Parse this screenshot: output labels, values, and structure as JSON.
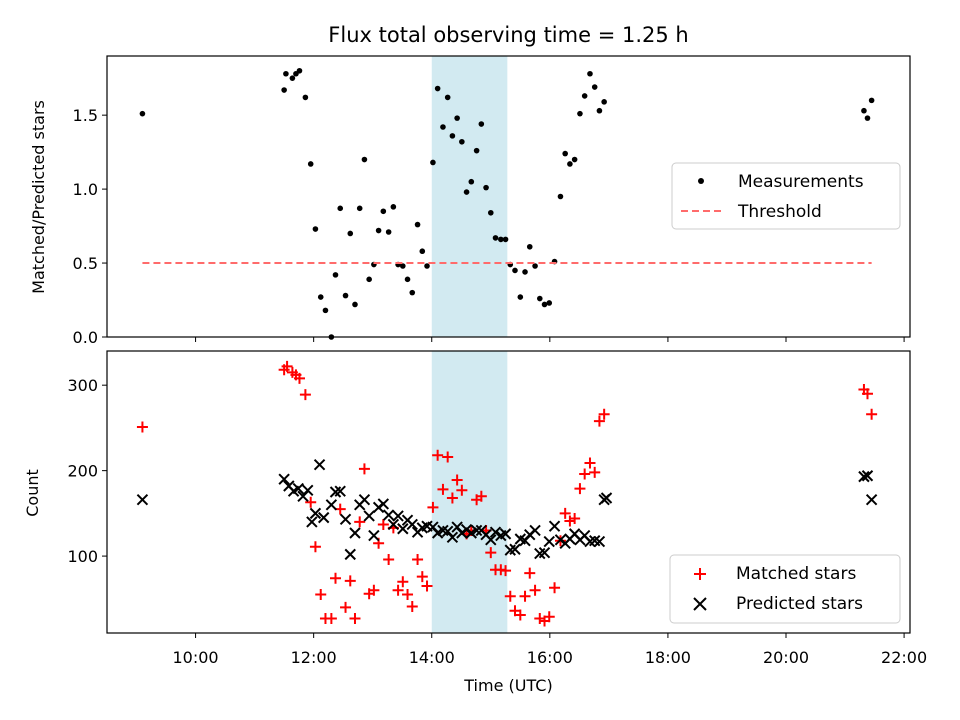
{
  "chart_data": {
    "title": "Flux total observing time = 1.25 h",
    "xlabel": "Time (UTC)",
    "x_unit": "hours UTC",
    "xlim": [
      8.5,
      22.1
    ],
    "x_ticks": [
      {
        "value": 10,
        "label": "10:00"
      },
      {
        "value": 12,
        "label": "12:00"
      },
      {
        "value": 14,
        "label": "14:00"
      },
      {
        "value": 16,
        "label": "16:00"
      },
      {
        "value": 18,
        "label": "18:00"
      },
      {
        "value": 20,
        "label": "20:00"
      },
      {
        "value": 22,
        "label": "22:00"
      }
    ],
    "highlight_span": {
      "x0": 14.0,
      "x1": 15.28,
      "color": "#add8e6"
    },
    "panels": [
      {
        "type": "scatter",
        "ylabel": "Matched/Predicted stars",
        "ylim": [
          0,
          1.9
        ],
        "y_ticks": [
          {
            "value": 0.0,
            "label": "0.0"
          },
          {
            "value": 0.5,
            "label": "0.5"
          },
          {
            "value": 1.0,
            "label": "1.0"
          },
          {
            "value": 1.5,
            "label": "1.5"
          }
        ],
        "legend": {
          "position": "center right"
        },
        "series": [
          {
            "name": "Measurements",
            "marker": "dot",
            "color": "#000000",
            "points": [
              [
                9.1,
                1.51
              ],
              [
                11.5,
                1.67
              ],
              [
                11.53,
                1.78
              ],
              [
                11.64,
                1.75
              ],
              [
                11.7,
                1.78
              ],
              [
                11.76,
                1.8
              ],
              [
                11.86,
                1.62
              ],
              [
                11.95,
                1.17
              ],
              [
                12.03,
                0.73
              ],
              [
                12.12,
                0.27
              ],
              [
                12.2,
                0.18
              ],
              [
                12.3,
                0.0
              ],
              [
                12.37,
                0.42
              ],
              [
                12.45,
                0.87
              ],
              [
                12.54,
                0.28
              ],
              [
                12.62,
                0.7
              ],
              [
                12.7,
                0.22
              ],
              [
                12.78,
                0.87
              ],
              [
                12.86,
                1.2
              ],
              [
                12.94,
                0.39
              ],
              [
                13.02,
                0.49
              ],
              [
                13.1,
                0.72
              ],
              [
                13.18,
                0.85
              ],
              [
                13.27,
                0.71
              ],
              [
                13.35,
                0.88
              ],
              [
                13.43,
                0.49
              ],
              [
                13.51,
                0.48
              ],
              [
                13.59,
                0.39
              ],
              [
                13.67,
                0.3
              ],
              [
                13.76,
                0.76
              ],
              [
                13.84,
                0.58
              ],
              [
                13.92,
                0.48
              ],
              [
                14.02,
                1.18
              ],
              [
                14.1,
                1.68
              ],
              [
                14.19,
                1.42
              ],
              [
                14.27,
                1.62
              ],
              [
                14.35,
                1.36
              ],
              [
                14.43,
                1.48
              ],
              [
                14.51,
                1.32
              ],
              [
                14.59,
                0.98
              ],
              [
                14.67,
                1.05
              ],
              [
                14.76,
                1.26
              ],
              [
                14.84,
                1.44
              ],
              [
                14.92,
                1.01
              ],
              [
                15.0,
                0.84
              ],
              [
                15.08,
                0.67
              ],
              [
                15.17,
                0.66
              ],
              [
                15.25,
                0.66
              ],
              [
                15.33,
                0.49
              ],
              [
                15.41,
                0.45
              ],
              [
                15.5,
                0.27
              ],
              [
                15.58,
                0.44
              ],
              [
                15.66,
                0.61
              ],
              [
                15.75,
                0.48
              ],
              [
                15.83,
                0.26
              ],
              [
                15.91,
                0.22
              ],
              [
                15.99,
                0.23
              ],
              [
                16.08,
                0.51
              ],
              [
                16.18,
                0.95
              ],
              [
                16.26,
                1.24
              ],
              [
                16.34,
                1.17
              ],
              [
                16.42,
                1.2
              ],
              [
                16.51,
                1.51
              ],
              [
                16.59,
                1.63
              ],
              [
                16.68,
                1.78
              ],
              [
                16.76,
                1.69
              ],
              [
                16.84,
                1.53
              ],
              [
                16.92,
                1.59
              ],
              [
                21.32,
                1.53
              ],
              [
                21.38,
                1.48
              ],
              [
                21.45,
                1.6
              ]
            ]
          },
          {
            "name": "Threshold",
            "type": "line",
            "style": "dashed",
            "color": "#ff6b6b",
            "x": [
              9.1,
              21.45
            ],
            "y": [
              0.5,
              0.5
            ]
          }
        ]
      },
      {
        "type": "scatter",
        "ylabel": "Count",
        "ylim": [
          10,
          340
        ],
        "y_ticks": [
          {
            "value": 100,
            "label": "100"
          },
          {
            "value": 200,
            "label": "200"
          },
          {
            "value": 300,
            "label": "300"
          }
        ],
        "legend": {
          "position": "lower right"
        },
        "series": [
          {
            "name": "Matched stars",
            "marker": "plus",
            "color": "#ff0000",
            "points": [
              [
                9.1,
                251
              ],
              [
                11.5,
                318
              ],
              [
                11.55,
                322
              ],
              [
                11.64,
                315
              ],
              [
                11.7,
                312
              ],
              [
                11.76,
                308
              ],
              [
                11.86,
                289
              ],
              [
                11.95,
                163
              ],
              [
                12.03,
                111
              ],
              [
                12.12,
                55
              ],
              [
                12.2,
                27
              ],
              [
                12.3,
                27
              ],
              [
                12.37,
                74
              ],
              [
                12.45,
                155
              ],
              [
                12.54,
                40
              ],
              [
                12.62,
                71
              ],
              [
                12.7,
                27
              ],
              [
                12.78,
                140
              ],
              [
                12.86,
                202
              ],
              [
                12.94,
                56
              ],
              [
                13.02,
                60
              ],
              [
                13.1,
                115
              ],
              [
                13.18,
                137
              ],
              [
                13.27,
                96
              ],
              [
                13.35,
                133
              ],
              [
                13.43,
                60
              ],
              [
                13.51,
                70
              ],
              [
                13.59,
                55
              ],
              [
                13.67,
                41
              ],
              [
                13.76,
                96
              ],
              [
                13.84,
                76
              ],
              [
                13.92,
                65
              ],
              [
                14.02,
                157
              ],
              [
                14.1,
                218
              ],
              [
                14.19,
                178
              ],
              [
                14.27,
                216
              ],
              [
                14.35,
                168
              ],
              [
                14.43,
                189
              ],
              [
                14.51,
                177
              ],
              [
                14.59,
                126
              ],
              [
                14.67,
                130
              ],
              [
                14.76,
                166
              ],
              [
                14.84,
                170
              ],
              [
                14.92,
                130
              ],
              [
                15.0,
                104
              ],
              [
                15.08,
                84
              ],
              [
                15.17,
                84
              ],
              [
                15.25,
                83
              ],
              [
                15.33,
                53
              ],
              [
                15.41,
                36
              ],
              [
                15.5,
                31
              ],
              [
                15.58,
                53
              ],
              [
                15.66,
                80
              ],
              [
                15.75,
                60
              ],
              [
                15.83,
                27
              ],
              [
                15.91,
                24
              ],
              [
                15.99,
                29
              ],
              [
                16.08,
                63
              ],
              [
                16.18,
                118
              ],
              [
                16.26,
                150
              ],
              [
                16.34,
                141
              ],
              [
                16.42,
                144
              ],
              [
                16.51,
                179
              ],
              [
                16.59,
                196
              ],
              [
                16.68,
                209
              ],
              [
                16.76,
                198
              ],
              [
                16.84,
                258
              ],
              [
                16.92,
                266
              ],
              [
                21.32,
                295
              ],
              [
                21.38,
                290
              ],
              [
                21.45,
                266
              ]
            ]
          },
          {
            "name": "Predicted stars",
            "marker": "x",
            "color": "#000000",
            "points": [
              [
                9.1,
                166
              ],
              [
                11.5,
                190
              ],
              [
                11.58,
                182
              ],
              [
                11.66,
                176
              ],
              [
                11.74,
                179
              ],
              [
                11.82,
                170
              ],
              [
                11.9,
                177
              ],
              [
                11.97,
                140
              ],
              [
                12.03,
                150
              ],
              [
                12.1,
                207
              ],
              [
                12.17,
                145
              ],
              [
                12.3,
                160
              ],
              [
                12.37,
                175
              ],
              [
                12.45,
                176
              ],
              [
                12.54,
                143
              ],
              [
                12.62,
                102
              ],
              [
                12.7,
                127
              ],
              [
                12.78,
                160
              ],
              [
                12.86,
                166
              ],
              [
                12.94,
                147
              ],
              [
                13.02,
                124
              ],
              [
                13.1,
                157
              ],
              [
                13.18,
                161
              ],
              [
                13.27,
                148
              ],
              [
                13.35,
                137
              ],
              [
                13.43,
                147
              ],
              [
                13.51,
                132
              ],
              [
                13.59,
                142
              ],
              [
                13.67,
                137
              ],
              [
                13.76,
                128
              ],
              [
                13.84,
                133
              ],
              [
                13.92,
                135
              ],
              [
                14.02,
                134
              ],
              [
                14.1,
                127
              ],
              [
                14.19,
                130
              ],
              [
                14.27,
                129
              ],
              [
                14.35,
                122
              ],
              [
                14.43,
                134
              ],
              [
                14.51,
                127
              ],
              [
                14.59,
                131
              ],
              [
                14.67,
                127
              ],
              [
                14.76,
                130
              ],
              [
                14.84,
                130
              ],
              [
                14.92,
                125
              ],
              [
                15.0,
                119
              ],
              [
                15.08,
                128
              ],
              [
                15.17,
                124
              ],
              [
                15.25,
                126
              ],
              [
                15.33,
                107
              ],
              [
                15.41,
                108
              ],
              [
                15.5,
                120
              ],
              [
                15.58,
                118
              ],
              [
                15.66,
                125
              ],
              [
                15.75,
                130
              ],
              [
                15.83,
                103
              ],
              [
                15.91,
                104
              ],
              [
                15.99,
                117
              ],
              [
                16.08,
                135
              ],
              [
                16.18,
                119
              ],
              [
                16.26,
                115
              ],
              [
                16.34,
                120
              ],
              [
                16.42,
                126
              ],
              [
                16.51,
                119
              ],
              [
                16.59,
                124
              ],
              [
                16.68,
                117
              ],
              [
                16.76,
                118
              ],
              [
                16.84,
                117
              ],
              [
                16.92,
                166
              ],
              [
                16.96,
                168
              ],
              [
                21.32,
                193
              ],
              [
                21.38,
                194
              ],
              [
                21.45,
                166
              ]
            ]
          }
        ]
      }
    ]
  }
}
